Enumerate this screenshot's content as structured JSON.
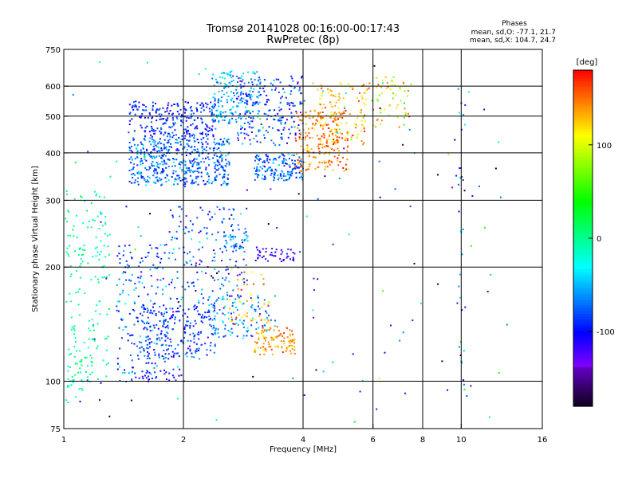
{
  "chart_data": {
    "type": "scatter",
    "title": "Tromsø 20141028 00:16:00-00:17:43",
    "subtitle": "RwPretec (8p)",
    "xlabel": "Frequency [MHz]",
    "ylabel": "Stationary phase Virtual Height [km]",
    "x_scale": "log",
    "y_scale": "log",
    "xlim": [
      1,
      16
    ],
    "ylim": [
      75,
      750
    ],
    "x_ticks": [
      1,
      2,
      4,
      6,
      8,
      10,
      16
    ],
    "y_ticks": [
      75,
      100,
      200,
      300,
      400,
      500,
      600,
      750
    ],
    "x_grid": [
      2,
      4,
      6,
      8,
      10
    ],
    "y_grid": [
      100,
      200,
      300,
      400,
      500,
      600
    ],
    "grid": true,
    "stats": {
      "header": "Phases",
      "line1": "mean, sd,O: -77.1, 21.7",
      "line2": "mean, sd,X: 104.7, 24.7"
    },
    "colorbar": {
      "label": "[deg]",
      "min": -180,
      "max": 180,
      "ticks": [
        {
          "value": 100,
          "text": "100"
        },
        {
          "value": 0,
          "text": "0"
        },
        {
          "value": -100,
          "text": "-100"
        }
      ]
    },
    "clusters": [
      {
        "f": [
          1.0,
          1.3
        ],
        "h": [
          100,
          320
        ],
        "phase": -5,
        "spread": 12,
        "n": 170
      },
      {
        "f": [
          1.0,
          1.12
        ],
        "h": [
          88,
          125
        ],
        "phase": -10,
        "spread": 10,
        "n": 25
      },
      {
        "f": [
          1.35,
          1.8
        ],
        "h": [
          100,
          230
        ],
        "phase": -80,
        "spread": 25,
        "n": 190
      },
      {
        "f": [
          1.55,
          2.4
        ],
        "h": [
          115,
          160
        ],
        "phase": -90,
        "spread": 20,
        "n": 230
      },
      {
        "f": [
          1.55,
          2.0
        ],
        "h": [
          100,
          108
        ],
        "phase": -100,
        "spread": 12,
        "n": 25
      },
      {
        "f": [
          1.8,
          2.9
        ],
        "h": [
          160,
          290
        ],
        "phase": -85,
        "spread": 25,
        "n": 180
      },
      {
        "f": [
          2.3,
          3.4
        ],
        "h": [
          130,
          170
        ],
        "phase": -60,
        "spread": 30,
        "n": 110
      },
      {
        "f": [
          3.0,
          3.8
        ],
        "h": [
          118,
          140
        ],
        "phase": 140,
        "spread": 15,
        "n": 100
      },
      {
        "f": [
          2.6,
          3.3
        ],
        "h": [
          140,
          200
        ],
        "phase": 125,
        "spread": 20,
        "n": 45
      },
      {
        "f": [
          3.0,
          3.8
        ],
        "h": [
          208,
          230
        ],
        "phase": -120,
        "spread": 15,
        "n": 45
      },
      {
        "f": [
          2.5,
          2.9
        ],
        "h": [
          225,
          245
        ],
        "phase": -60,
        "spread": 20,
        "n": 35
      },
      {
        "f": [
          1.45,
          2.6
        ],
        "h": [
          330,
          440
        ],
        "phase": -75,
        "spread": 20,
        "n": 500
      },
      {
        "f": [
          1.45,
          2.4
        ],
        "h": [
          440,
          550
        ],
        "phase": -95,
        "spread": 15,
        "n": 260
      },
      {
        "f": [
          2.35,
          3.1
        ],
        "h": [
          480,
          660
        ],
        "phase": -55,
        "spread": 20,
        "n": 180
      },
      {
        "f": [
          2.7,
          4.0
        ],
        "h": [
          420,
          640
        ],
        "phase": -85,
        "spread": 25,
        "n": 200
      },
      {
        "f": [
          3.0,
          4.0
        ],
        "h": [
          340,
          400
        ],
        "phase": -75,
        "spread": 20,
        "n": 160
      },
      {
        "f": [
          3.8,
          5.2
        ],
        "h": [
          360,
          520
        ],
        "phase": 145,
        "spread": 20,
        "n": 200
      },
      {
        "f": [
          4.2,
          5.7
        ],
        "h": [
          420,
          620
        ],
        "phase": 130,
        "spread": 25,
        "n": 110
      },
      {
        "f": [
          5.5,
          7.5
        ],
        "h": [
          470,
          650
        ],
        "phase": 110,
        "spread": 35,
        "n": 70
      },
      {
        "f": [
          1.05,
          13
        ],
        "h": [
          75,
          700
        ],
        "phase": -80,
        "spread": 80,
        "n": 150
      },
      {
        "f": [
          9.8,
          10.2
        ],
        "h": [
          90,
          620
        ],
        "phase": -60,
        "spread": 60,
        "n": 30
      }
    ]
  }
}
